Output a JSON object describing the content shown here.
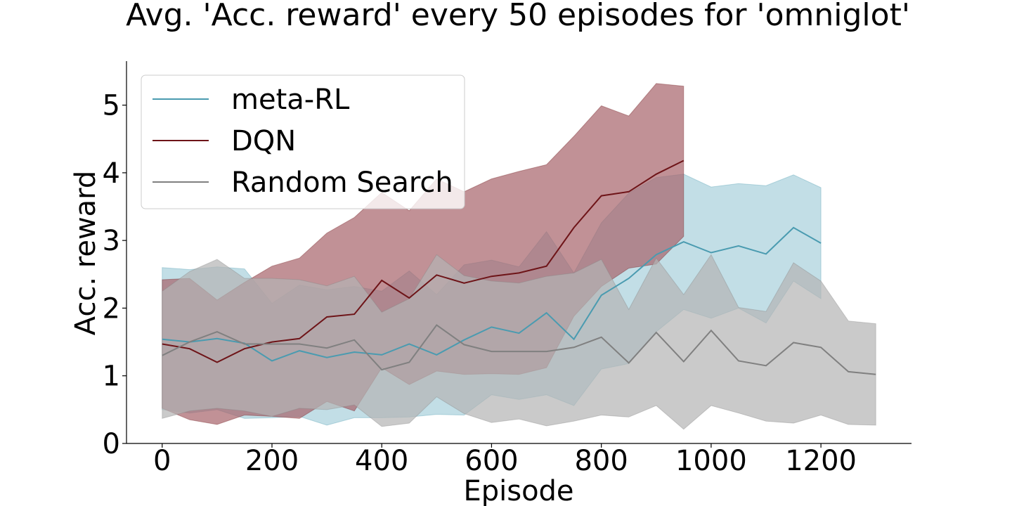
{
  "chart_data": {
    "type": "line",
    "title": "Avg. 'Acc. reward' every 50 episodes for 'omniglot'",
    "xlabel": "Episode",
    "ylabel": "Acc. reward",
    "xlim": [
      -65,
      1365
    ],
    "ylim": [
      0,
      5.65
    ],
    "xticks": [
      0,
      200,
      400,
      600,
      800,
      1000,
      1200
    ],
    "yticks": [
      0,
      1,
      2,
      3,
      4,
      5
    ],
    "grid": false,
    "legend_position": "top-left",
    "series": [
      {
        "name": "meta-RL",
        "color": "#4a9bb0",
        "band_color": "#a8d0dc",
        "x": [
          0,
          50,
          100,
          150,
          200,
          250,
          300,
          350,
          400,
          450,
          500,
          550,
          600,
          650,
          700,
          750,
          800,
          850,
          900,
          950,
          1000,
          1050,
          1100,
          1150,
          1200
        ],
        "y": [
          1.54,
          1.5,
          1.55,
          1.48,
          1.22,
          1.37,
          1.27,
          1.35,
          1.31,
          1.47,
          1.31,
          1.53,
          1.72,
          1.63,
          1.93,
          1.54,
          2.19,
          2.44,
          2.79,
          2.98,
          2.82,
          2.92,
          2.8,
          3.19,
          2.96
        ],
        "lower": [
          0.5,
          0.45,
          0.5,
          0.37,
          0.38,
          0.4,
          0.27,
          0.38,
          0.38,
          0.39,
          0.43,
          0.42,
          0.72,
          0.65,
          0.72,
          0.56,
          1.1,
          1.18,
          1.65,
          1.98,
          1.85,
          2.0,
          1.78,
          2.4,
          2.14
        ],
        "upper": [
          2.6,
          2.57,
          2.61,
          2.58,
          2.07,
          2.34,
          2.27,
          2.32,
          2.25,
          2.55,
          2.2,
          2.64,
          2.71,
          2.61,
          3.13,
          2.52,
          3.26,
          3.7,
          3.93,
          3.98,
          3.79,
          3.84,
          3.81,
          3.97,
          3.78
        ]
      },
      {
        "name": "DQN",
        "color": "#6e1418",
        "band_color": "#a7626a",
        "x": [
          0,
          50,
          100,
          150,
          200,
          250,
          300,
          350,
          400,
          450,
          500,
          550,
          600,
          650,
          700,
          750,
          800,
          850,
          900,
          950
        ],
        "y": [
          1.47,
          1.4,
          1.2,
          1.4,
          1.5,
          1.55,
          1.87,
          1.91,
          2.41,
          2.15,
          2.49,
          2.37,
          2.47,
          2.52,
          2.62,
          3.19,
          3.66,
          3.72,
          3.98,
          4.18
        ],
        "lower": [
          0.52,
          0.35,
          0.28,
          0.42,
          0.4,
          0.37,
          0.62,
          0.48,
          1.12,
          0.87,
          1.07,
          1.02,
          1.03,
          1.02,
          1.12,
          1.88,
          2.32,
          2.59,
          2.65,
          3.06
        ],
        "upper": [
          2.42,
          2.44,
          2.12,
          2.38,
          2.62,
          2.74,
          3.11,
          3.34,
          3.71,
          3.44,
          3.91,
          3.72,
          3.91,
          4.02,
          4.12,
          4.54,
          4.99,
          4.84,
          5.32,
          5.28
        ]
      },
      {
        "name": "Random Search",
        "color": "#808080",
        "band_color": "#b4b4b4",
        "x": [
          0,
          50,
          100,
          150,
          200,
          250,
          300,
          350,
          400,
          450,
          500,
          550,
          600,
          650,
          700,
          750,
          800,
          850,
          900,
          950,
          1000,
          1050,
          1100,
          1150,
          1200,
          1250,
          1300
        ],
        "y": [
          1.3,
          1.5,
          1.65,
          1.47,
          1.47,
          1.47,
          1.41,
          1.53,
          1.09,
          1.2,
          1.75,
          1.46,
          1.36,
          1.36,
          1.36,
          1.42,
          1.57,
          1.19,
          1.64,
          1.21,
          1.67,
          1.22,
          1.15,
          1.49,
          1.42,
          1.06,
          1.02
        ],
        "lower": [
          0.37,
          0.48,
          0.52,
          0.48,
          0.4,
          0.52,
          0.5,
          0.57,
          0.25,
          0.3,
          0.69,
          0.44,
          0.31,
          0.36,
          0.26,
          0.33,
          0.42,
          0.39,
          0.56,
          0.21,
          0.56,
          0.45,
          0.33,
          0.3,
          0.42,
          0.28,
          0.27
        ],
        "upper": [
          2.25,
          2.54,
          2.72,
          2.44,
          2.44,
          2.42,
          2.33,
          2.47,
          1.94,
          2.14,
          2.79,
          2.48,
          2.4,
          2.37,
          2.47,
          2.52,
          2.72,
          1.98,
          2.74,
          2.2,
          2.79,
          2.01,
          1.95,
          2.67,
          2.4,
          1.81,
          1.77
        ]
      }
    ]
  }
}
